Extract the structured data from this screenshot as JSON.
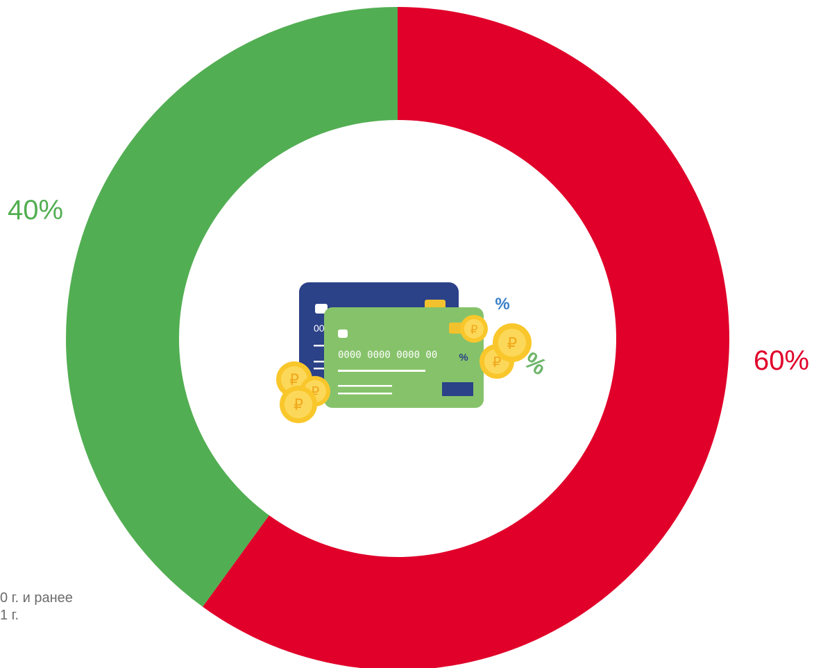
{
  "chart_data": {
    "type": "pie",
    "variant": "donut",
    "title": "",
    "slices": [
      {
        "label": "…1 г.",
        "value": 60,
        "display": "60%",
        "color": "#e0002a"
      },
      {
        "label": "…0 г. и ранее",
        "value": 40,
        "display": "40%",
        "color": "#52ae52"
      }
    ],
    "legend": {
      "placement": "bottom-left",
      "entries": [
        "0 г. и ранее",
        "1 г."
      ],
      "text_color": "#6b6b6b"
    }
  },
  "center_icon": {
    "name": "credit-cards-coins-icon",
    "card_number": "0000 0000 0000 00",
    "card_number_partial": "00",
    "colors": {
      "card_back": "#2b4188",
      "card_front": "#86c26a",
      "coin": "#f9c72b",
      "chip": "#f2c12e",
      "percent_blue": "#3a7fc8",
      "percent_green": "#6fb56b"
    }
  }
}
